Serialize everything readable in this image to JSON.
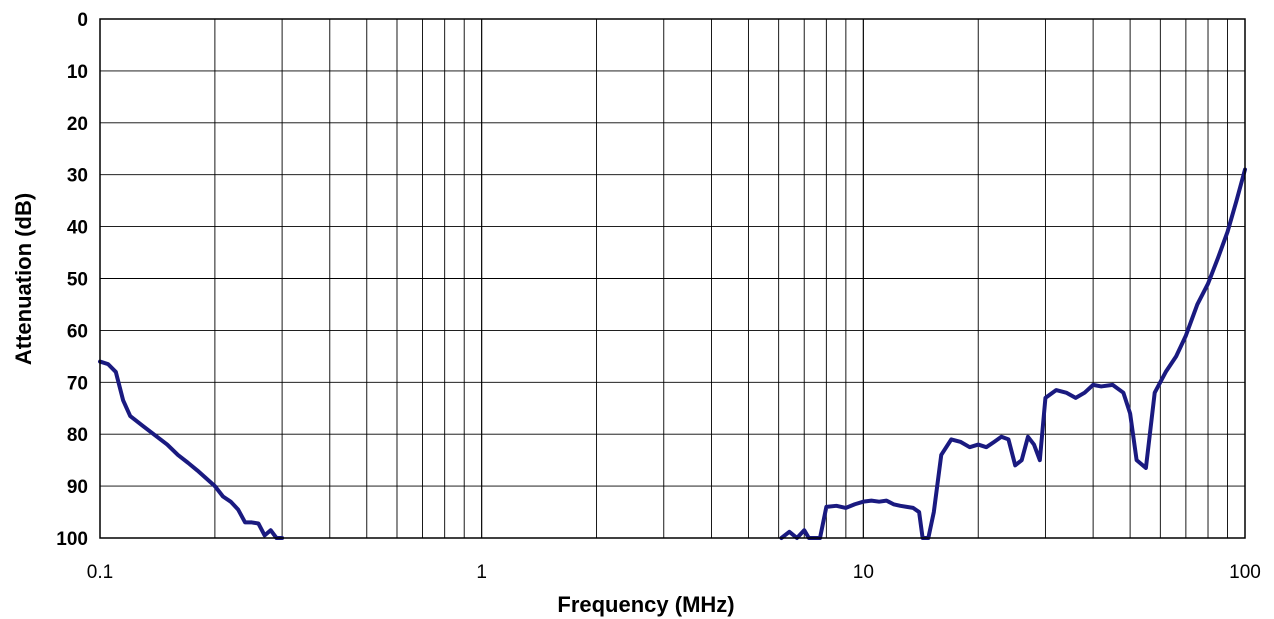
{
  "chart_data": {
    "type": "line",
    "xlabel": "Frequency (MHz)",
    "ylabel": "Attenuation (dB)",
    "xscale": "log",
    "xlim": [
      0.1,
      100
    ],
    "ylim": [
      0,
      100
    ],
    "yinverted": true,
    "xticks": [
      0.1,
      1,
      10,
      100
    ],
    "xtick_labels": [
      "0.1",
      "1",
      "10",
      "100"
    ],
    "yticks": [
      0,
      10,
      20,
      30,
      40,
      50,
      60,
      70,
      80,
      90,
      100
    ],
    "ytick_labels": [
      "0",
      "10",
      "20",
      "30",
      "40",
      "50",
      "60",
      "70",
      "80",
      "90",
      "100"
    ],
    "grid": true,
    "colors": {
      "series": "#1a1a80",
      "grid": "#000000"
    },
    "series": [
      {
        "segments": [
          [
            [
              0.1,
              66
            ],
            [
              0.105,
              66.5
            ],
            [
              0.11,
              68
            ],
            [
              0.115,
              73.5
            ],
            [
              0.12,
              76.5
            ],
            [
              0.13,
              78.5
            ],
            [
              0.15,
              82
            ],
            [
              0.16,
              84
            ],
            [
              0.17,
              85.5
            ],
            [
              0.18,
              87
            ],
            [
              0.2,
              90
            ],
            [
              0.21,
              92
            ],
            [
              0.22,
              93
            ],
            [
              0.23,
              94.5
            ],
            [
              0.24,
              97
            ],
            [
              0.25,
              97
            ],
            [
              0.26,
              97.2
            ],
            [
              0.27,
              99.5
            ],
            [
              0.28,
              98.5
            ],
            [
              0.29,
              100
            ],
            [
              0.3,
              100
            ]
          ],
          [
            [
              6.1,
              100
            ],
            [
              6.4,
              98.8
            ],
            [
              6.7,
              100
            ],
            [
              7.0,
              98.5
            ],
            [
              7.2,
              100
            ],
            [
              7.7,
              100
            ],
            [
              8.0,
              94
            ],
            [
              8.5,
              93.8
            ],
            [
              9.0,
              94.2
            ],
            [
              9.5,
              93.5
            ],
            [
              10.0,
              93
            ],
            [
              10.5,
              92.8
            ],
            [
              11.0,
              93
            ],
            [
              11.5,
              92.8
            ],
            [
              12.0,
              93.5
            ],
            [
              12.5,
              93.8
            ],
            [
              13.0,
              94
            ],
            [
              13.5,
              94.2
            ],
            [
              14.0,
              95
            ],
            [
              14.3,
              100
            ],
            [
              14.8,
              100
            ],
            [
              15.3,
              95
            ],
            [
              16.0,
              84
            ],
            [
              17.0,
              81
            ],
            [
              18.0,
              81.5
            ],
            [
              19.0,
              82.5
            ],
            [
              20.0,
              82
            ],
            [
              21.0,
              82.5
            ],
            [
              22.0,
              81.5
            ],
            [
              23.0,
              80.5
            ],
            [
              24.0,
              81
            ],
            [
              25.0,
              86
            ],
            [
              26.0,
              85
            ],
            [
              27.0,
              80.5
            ],
            [
              28.0,
              82
            ],
            [
              29.0,
              85
            ],
            [
              30.0,
              73
            ],
            [
              32.0,
              71.5
            ],
            [
              34.0,
              72
            ],
            [
              36.0,
              73
            ],
            [
              38.0,
              72
            ],
            [
              40.0,
              70.5
            ],
            [
              42.0,
              70.8
            ],
            [
              45.0,
              70.5
            ],
            [
              48.0,
              72
            ],
            [
              50.0,
              76
            ],
            [
              52.0,
              85
            ],
            [
              55.0,
              86.5
            ],
            [
              58.0,
              72
            ],
            [
              62.0,
              68
            ],
            [
              66.0,
              65
            ],
            [
              70.0,
              61
            ],
            [
              75.0,
              55
            ],
            [
              80.0,
              51
            ],
            [
              85.0,
              46
            ],
            [
              90.0,
              41
            ],
            [
              95.0,
              35
            ],
            [
              100.0,
              29
            ]
          ]
        ]
      }
    ]
  }
}
